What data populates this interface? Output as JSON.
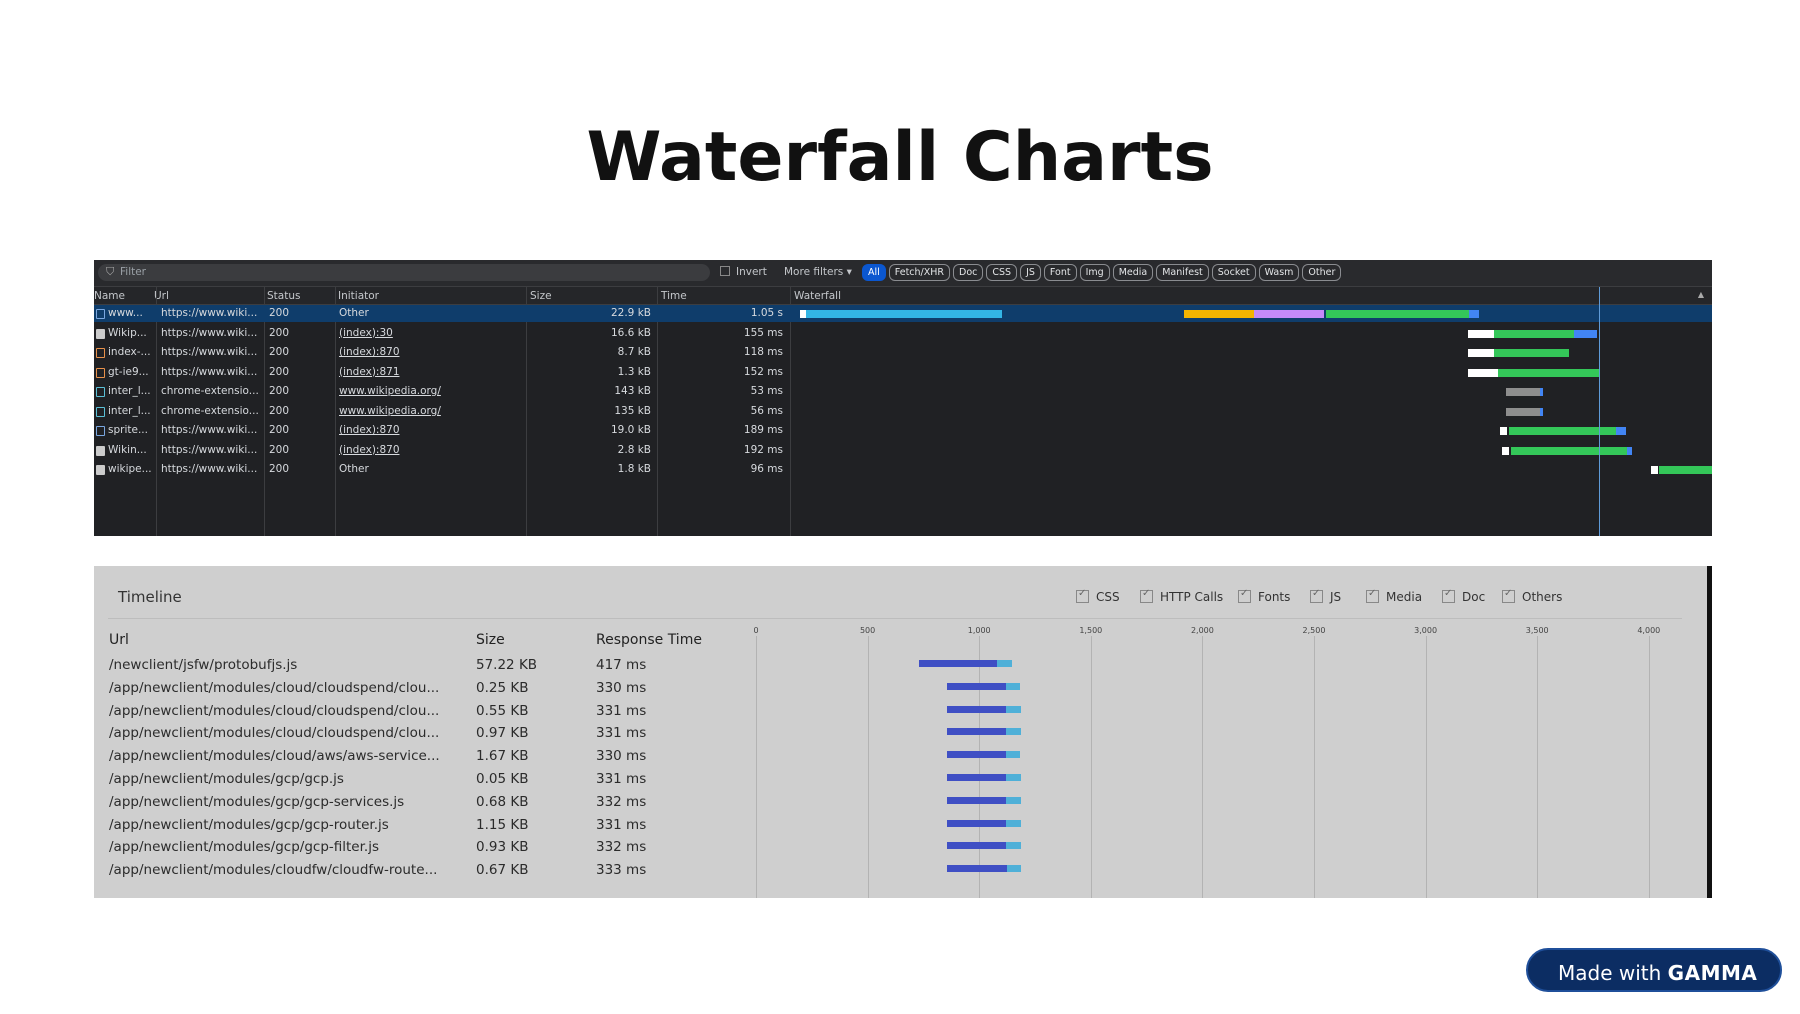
{
  "slide": {
    "title": "Waterfall Charts"
  },
  "devtools": {
    "filter_placeholder": "Filter",
    "invert_label": "Invert",
    "more_filters_label": "More filters ▾",
    "type_filters": [
      "All",
      "Fetch/XHR",
      "Doc",
      "CSS",
      "JS",
      "Font",
      "Img",
      "Media",
      "Manifest",
      "Socket",
      "Wasm",
      "Other"
    ],
    "active_type": "All",
    "columns": {
      "name": "Name",
      "url": "Url",
      "status": "Status",
      "initiator": "Initiator",
      "size": "Size",
      "time": "Time",
      "waterfall": "Waterfall"
    },
    "rows": [
      {
        "name": "www...",
        "url": "https://www.wiki...",
        "status": "200",
        "initiator": "Other",
        "size": "22.9 kB",
        "time": "1.05 s"
      },
      {
        "name": "Wikip...",
        "url": "https://www.wiki...",
        "status": "200",
        "initiator": "(index):30",
        "size": "16.6 kB",
        "time": "155 ms"
      },
      {
        "name": "index-...",
        "url": "https://www.wiki...",
        "status": "200",
        "initiator": "(index):870",
        "size": "8.7 kB",
        "time": "118 ms"
      },
      {
        "name": "gt-ie9...",
        "url": "https://www.wiki...",
        "status": "200",
        "initiator": "(index):871",
        "size": "1.3 kB",
        "time": "152 ms"
      },
      {
        "name": "inter_l...",
        "url": "chrome-extensio...",
        "status": "200",
        "initiator": "www.wikipedia.org/",
        "size": "143 kB",
        "time": "53 ms"
      },
      {
        "name": "inter_l...",
        "url": "chrome-extensio...",
        "status": "200",
        "initiator": "www.wikipedia.org/",
        "size": "135 kB",
        "time": "56 ms"
      },
      {
        "name": "sprite...",
        "url": "https://www.wiki...",
        "status": "200",
        "initiator": "(index):870",
        "size": "19.0 kB",
        "time": "189 ms"
      },
      {
        "name": "Wikin...",
        "url": "https://www.wiki...",
        "status": "200",
        "initiator": "(index):870",
        "size": "2.8 kB",
        "time": "192 ms"
      },
      {
        "name": "wikipe...",
        "url": "https://www.wiki...",
        "status": "200",
        "initiator": "Other",
        "size": "1.8 kB",
        "time": "96 ms"
      }
    ],
    "colors": {
      "green": "#34c759",
      "blue": "#4285f4",
      "cyan": "#33b5e5",
      "orange": "#f4b400",
      "purple": "#c58af9",
      "gray": "#8e8e8e",
      "white": "#ffffff"
    }
  },
  "timeline": {
    "title": "Timeline",
    "legend": [
      "CSS",
      "HTTP Calls",
      "Fonts",
      "JS",
      "Media",
      "Doc",
      "Others"
    ],
    "columns": {
      "url": "Url",
      "size": "Size",
      "response_time": "Response Time"
    },
    "axis_ticks": [
      "0",
      "500",
      "1,000",
      "1,500",
      "2,000",
      "2,500",
      "3,000",
      "3,500",
      "4,000"
    ],
    "rows": [
      {
        "url": "/newclient/jsfw/protobufjs.js",
        "size": "57.22 KB",
        "response_time": "417 ms",
        "start_ms": 730,
        "dark_ms": 350,
        "light_ms": 67
      },
      {
        "url": "/app/newclient/modules/cloud/cloudspend/clou...",
        "size": "0.25 KB",
        "response_time": "330 ms",
        "start_ms": 855,
        "dark_ms": 265,
        "light_ms": 65
      },
      {
        "url": "/app/newclient/modules/cloud/cloudspend/clou...",
        "size": "0.55 KB",
        "response_time": "331 ms",
        "start_ms": 855,
        "dark_ms": 266,
        "light_ms": 65
      },
      {
        "url": "/app/newclient/modules/cloud/cloudspend/clou...",
        "size": "0.97 KB",
        "response_time": "331 ms",
        "start_ms": 855,
        "dark_ms": 266,
        "light_ms": 65
      },
      {
        "url": "/app/newclient/modules/cloud/aws/aws-service...",
        "size": "1.67 KB",
        "response_time": "330 ms",
        "start_ms": 855,
        "dark_ms": 265,
        "light_ms": 65
      },
      {
        "url": "/app/newclient/modules/gcp/gcp.js",
        "size": "0.05 KB",
        "response_time": "331 ms",
        "start_ms": 855,
        "dark_ms": 266,
        "light_ms": 65
      },
      {
        "url": "/app/newclient/modules/gcp/gcp-services.js",
        "size": "0.68 KB",
        "response_time": "332 ms",
        "start_ms": 855,
        "dark_ms": 267,
        "light_ms": 65
      },
      {
        "url": "/app/newclient/modules/gcp/gcp-router.js",
        "size": "1.15 KB",
        "response_time": "331 ms",
        "start_ms": 855,
        "dark_ms": 266,
        "light_ms": 65
      },
      {
        "url": "/app/newclient/modules/gcp/gcp-filter.js",
        "size": "0.93 KB",
        "response_time": "332 ms",
        "start_ms": 855,
        "dark_ms": 267,
        "light_ms": 65
      },
      {
        "url": "/app/newclient/modules/cloudfw/cloudfw-route...",
        "size": "0.67 KB",
        "response_time": "333 ms",
        "start_ms": 855,
        "dark_ms": 268,
        "light_ms": 65
      }
    ],
    "colors": {
      "dark_bar": "#3f4fc4",
      "light_bar": "#4fb0d8"
    }
  },
  "badge": {
    "prefix": "Made with ",
    "brand": "GAMMA"
  }
}
